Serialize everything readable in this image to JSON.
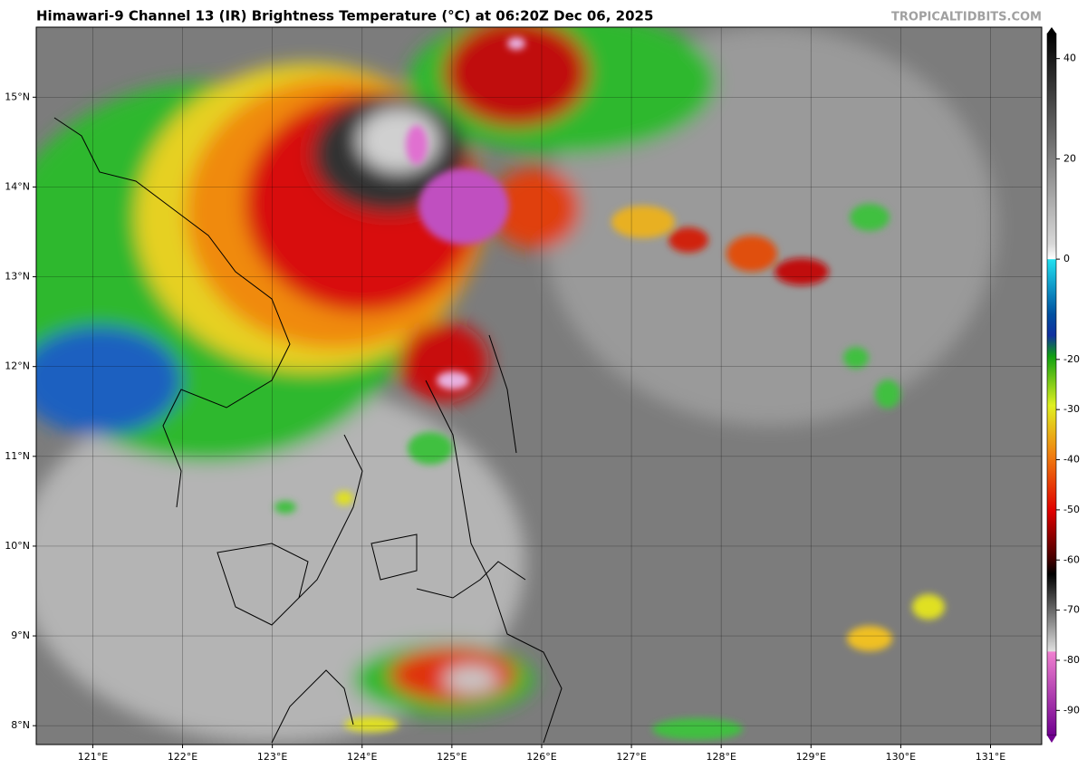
{
  "header": {
    "title": "Himawari-9 Channel 13 (IR) Brightness Temperature (°C) at 06:20Z Dec 06, 2025",
    "credit": "TROPICALTIDBITS.COM"
  },
  "map": {
    "xlim": [
      120.37,
      131.57
    ],
    "ylim": [
      7.79,
      15.78
    ],
    "xticks": [
      {
        "value": 121,
        "label": "121°E"
      },
      {
        "value": 122,
        "label": "122°E"
      },
      {
        "value": 123,
        "label": "123°E"
      },
      {
        "value": 124,
        "label": "124°E"
      },
      {
        "value": 125,
        "label": "125°E"
      },
      {
        "value": 126,
        "label": "126°E"
      },
      {
        "value": 127,
        "label": "127°E"
      },
      {
        "value": 128,
        "label": "128°E"
      },
      {
        "value": 129,
        "label": "129°E"
      },
      {
        "value": 130,
        "label": "130°E"
      },
      {
        "value": 131,
        "label": "131°E"
      }
    ],
    "yticks": [
      {
        "value": 8,
        "label": "8°N"
      },
      {
        "value": 9,
        "label": "9°N"
      },
      {
        "value": 10,
        "label": "10°N"
      },
      {
        "value": 11,
        "label": "11°N"
      },
      {
        "value": 12,
        "label": "12°N"
      },
      {
        "value": 13,
        "label": "13°N"
      },
      {
        "value": 14,
        "label": "14°N"
      },
      {
        "value": 15,
        "label": "15°N"
      }
    ],
    "grid": true
  },
  "colorbar": {
    "lim": [
      -95,
      45
    ],
    "ticks": [
      40,
      20,
      0,
      -20,
      -30,
      -40,
      -50,
      -60,
      -70,
      -80,
      -90
    ]
  }
}
